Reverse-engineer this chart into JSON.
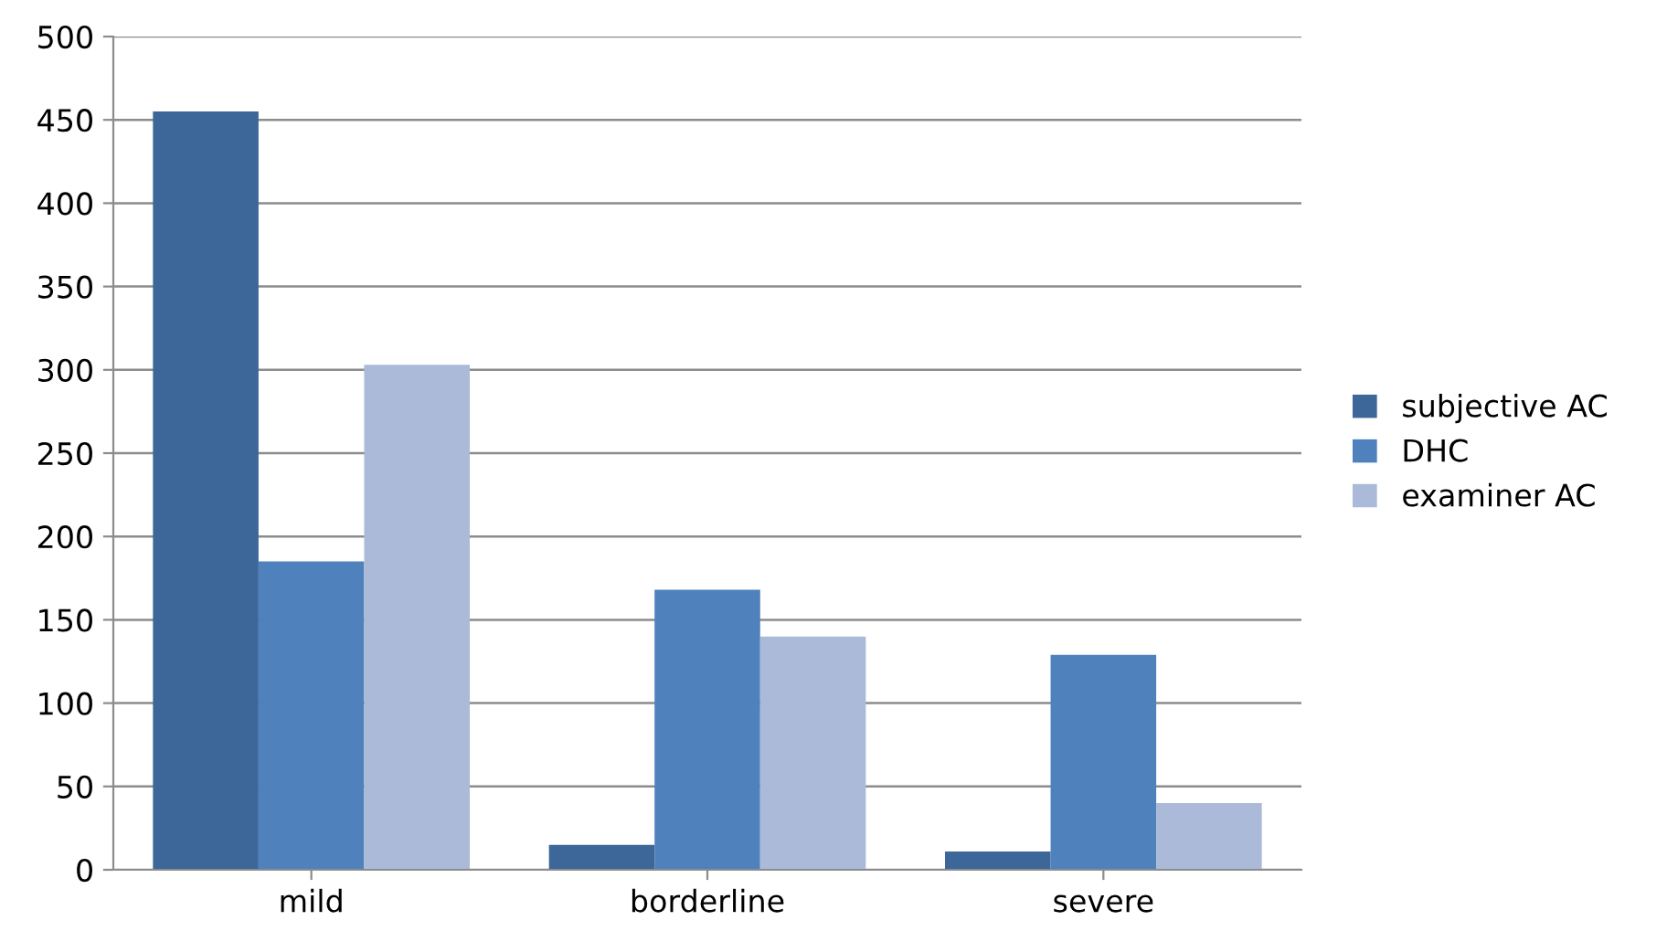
{
  "chart_data": {
    "type": "bar",
    "categories": [
      "mild",
      "borderline",
      "severe"
    ],
    "series": [
      {
        "name": "subjective AC",
        "color": "#3d6699",
        "values": [
          455,
          15,
          11
        ]
      },
      {
        "name": "DHC",
        "color": "#4f81bd",
        "values": [
          185,
          168,
          129
        ]
      },
      {
        "name": "examiner AC",
        "color": "#aabad8",
        "values": [
          303,
          140,
          40
        ]
      }
    ],
    "ylim": [
      0,
      500
    ],
    "yticks": [
      0,
      50,
      100,
      150,
      200,
      250,
      300,
      350,
      400,
      450,
      500
    ],
    "grid": "y",
    "legend": "right"
  }
}
